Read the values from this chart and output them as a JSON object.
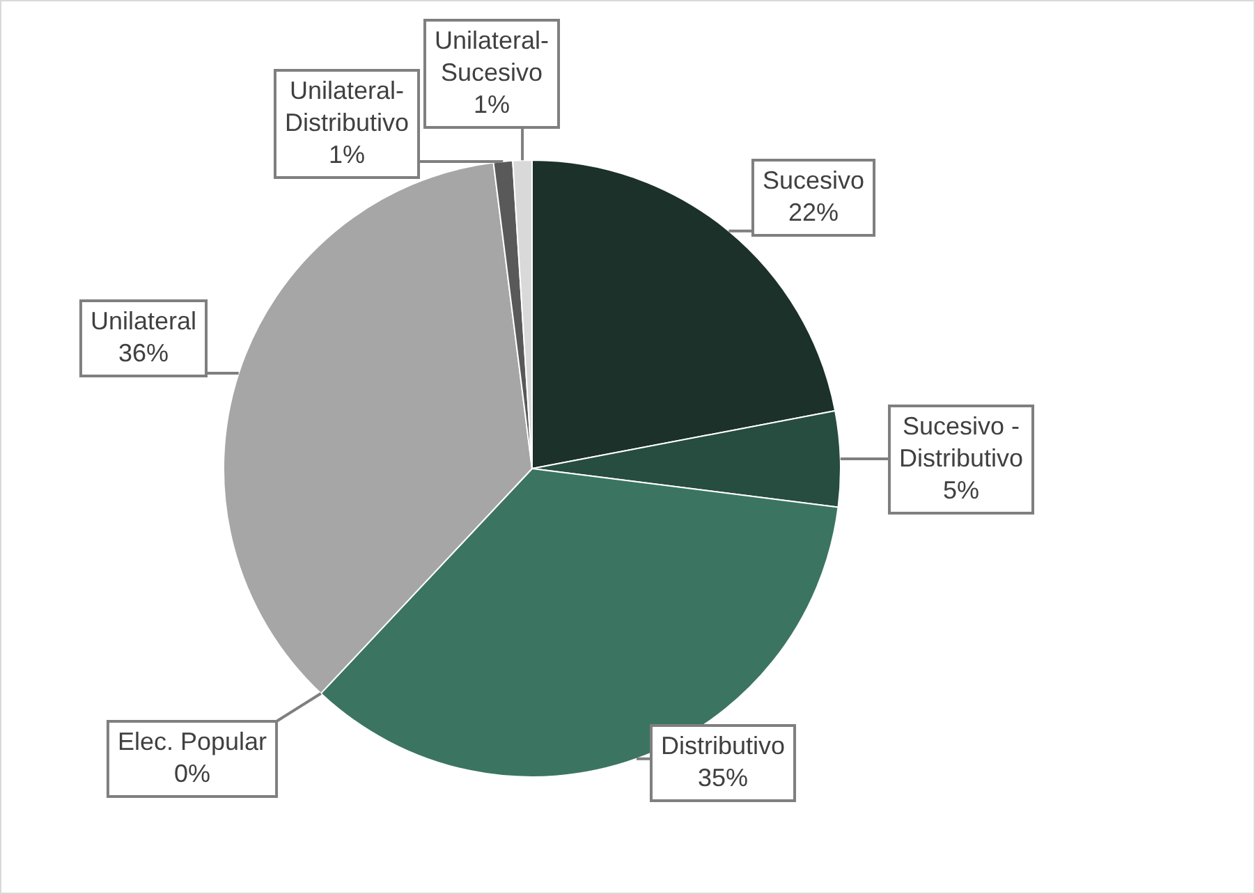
{
  "chart_data": {
    "type": "pie",
    "categories": [
      "Sucesivo",
      "Sucesivo - Distributivo",
      "Distributivo",
      "Elec. Popular",
      "Unilateral",
      "Unilateral-Distributivo",
      "Unilateral-Sucesivo"
    ],
    "values": [
      22,
      5,
      35,
      0,
      36,
      1,
      1
    ],
    "colors": [
      "#1b3129",
      "#264d3f",
      "#3b7561",
      "#8c8c8c",
      "#a6a6a6",
      "#595959",
      "#d9d9d9"
    ],
    "value_labels": [
      "22%",
      "5%",
      "35%",
      "0%",
      "36%",
      "1%",
      "1%"
    ],
    "legend": false
  }
}
